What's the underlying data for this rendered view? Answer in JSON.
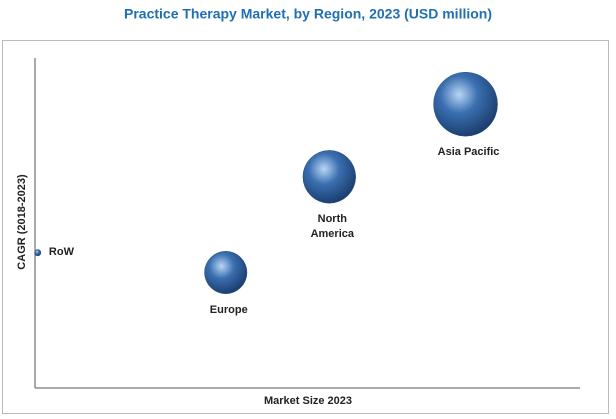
{
  "chart_data": {
    "type": "bubble",
    "title": "Practice Therapy Market, by Region, 2023 (USD million)",
    "x_label": "Market Size 2023",
    "y_label": "CAGR (2018-2023)",
    "categories": [
      "RoW",
      "Europe",
      "North America",
      "Asia Pacific"
    ],
    "x": [
      0.5,
      35,
      54,
      79
    ],
    "values": [
      41,
      35,
      64,
      86
    ],
    "sizes": [
      1,
      44,
      68,
      100
    ],
    "xlim": [
      0,
      100
    ],
    "ylim": [
      0,
      100
    ],
    "color": "#3a6fb0"
  }
}
